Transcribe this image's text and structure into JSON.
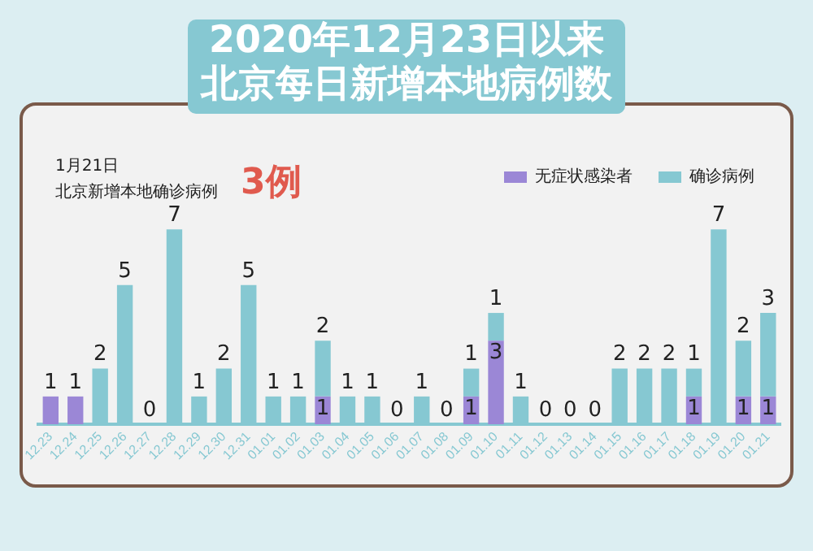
{
  "chart_data": {
    "type": "bar",
    "stacked": true,
    "title": "2020年12月23日以来",
    "subtitle": "北京每日新增本地病例数",
    "annotations": [
      "1月21日",
      "北京新增本地确诊病例",
      "3例"
    ],
    "categories": [
      "12.23",
      "12.24",
      "12.25",
      "12.26",
      "12.27",
      "12.28",
      "12.29",
      "12.30",
      "12.31",
      "01.01",
      "01.02",
      "01.03",
      "01.04",
      "01.05",
      "01.06",
      "01.07",
      "01.08",
      "01.09",
      "01.10",
      "01.11",
      "01.12",
      "01.13",
      "01.14",
      "01.15",
      "01.16",
      "01.17",
      "01.18",
      "01.19",
      "01.20",
      "01.21"
    ],
    "series": [
      {
        "name": "无症状感染者",
        "color": "#9b87d6",
        "values": [
          1,
          1,
          0,
          0,
          0,
          0,
          0,
          0,
          0,
          0,
          0,
          1,
          0,
          0,
          0,
          0,
          0,
          1,
          3,
          0,
          0,
          0,
          0,
          0,
          0,
          0,
          1,
          0,
          1,
          1
        ],
        "value_labels": [
          "1",
          "1",
          null,
          null,
          null,
          null,
          null,
          null,
          null,
          null,
          null,
          "1",
          null,
          null,
          null,
          null,
          null,
          "1",
          "3",
          null,
          null,
          null,
          null,
          null,
          null,
          null,
          "1",
          null,
          "1",
          "1"
        ]
      },
      {
        "name": "确诊病例",
        "color": "#86c8d2",
        "values": [
          0,
          0,
          2,
          5,
          0,
          7,
          1,
          2,
          5,
          1,
          1,
          2,
          1,
          1,
          0,
          1,
          0,
          1,
          1,
          1,
          0,
          0,
          0,
          2,
          2,
          2,
          1,
          7,
          2,
          3
        ],
        "value_labels": [
          null,
          null,
          "2",
          "5",
          "0",
          "7",
          "1",
          "2",
          "5",
          "1",
          "1",
          "2",
          "1",
          "1",
          "0",
          "1",
          "0",
          "1",
          "1",
          "1",
          "0",
          "0",
          "0",
          "2",
          "2",
          "2",
          "1",
          "7",
          "2",
          "3"
        ]
      }
    ],
    "legend": "top",
    "grid": false
  }
}
